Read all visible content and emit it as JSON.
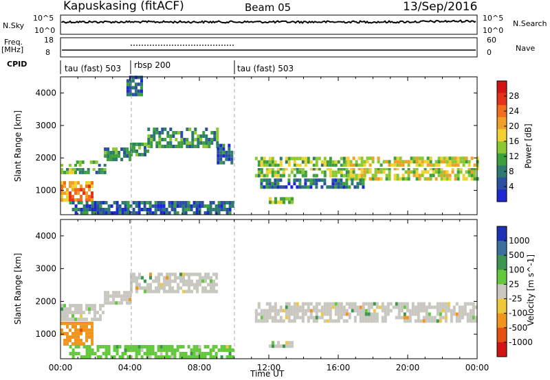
{
  "header": {
    "station": "Kapuskasing (fitACF)",
    "beam": "Beam 05",
    "date": "13/Sep/2016"
  },
  "top_strips": {
    "nsky_label": "N.Sky",
    "nsky_ticks": [
      "10^5",
      "10^0"
    ],
    "nsearch_label": "N.Search",
    "nsearch_ticks": [
      "10^5",
      "10^0"
    ],
    "freq_label": "Freq.",
    "freq_unit": "[MHz]",
    "freq_ticks": [
      "18",
      "8"
    ],
    "nave_label": "Nave",
    "nave_ticks": [
      "60",
      "0"
    ],
    "cpid_label": "CPID",
    "cpid_segments": [
      {
        "label": "tau (fast) 503",
        "start_h": 0,
        "end_h": 4
      },
      {
        "label": "rbsp 200",
        "start_h": 4,
        "end_h": 10
      },
      {
        "label": "tau (fast) 503",
        "start_h": 10,
        "end_h": 24
      }
    ]
  },
  "chart_data": [
    {
      "type": "heatmap",
      "name": "power",
      "ylabel": "Slant Range [km]",
      "yticks": [
        1000,
        2000,
        3000,
        4000
      ],
      "ylim": [
        250,
        4500
      ],
      "xlim": [
        0,
        24
      ],
      "colorbar_label": "Power [dB]",
      "colorbar_ticks": [
        "28",
        "24",
        "20",
        "16",
        "12",
        "8",
        "4"
      ],
      "colors": [
        "#1e28d2",
        "#2c50a0",
        "#2d7a6e",
        "#3ca03c",
        "#8cc832",
        "#f0d232",
        "#f0a028",
        "#f06e1e",
        "#e63218",
        "#d21414"
      ],
      "bands": [
        {
          "t0": 0.0,
          "t1": 0.9,
          "r0": 1500,
          "r1": 1800,
          "v": 13
        },
        {
          "t0": 0.9,
          "t1": 2.5,
          "r0": 1500,
          "r1": 1900,
          "v": 11
        },
        {
          "t0": 2.5,
          "t1": 4.0,
          "r0": 1900,
          "r1": 2300,
          "v": 9
        },
        {
          "t0": 0.0,
          "t1": 1.8,
          "r0": 650,
          "r1": 1250,
          "v": 22
        },
        {
          "t0": 4.0,
          "t1": 5.0,
          "r0": 2050,
          "r1": 2400,
          "v": 9
        },
        {
          "t0": 5.0,
          "t1": 9.0,
          "r0": 2300,
          "r1": 2850,
          "v": 10
        },
        {
          "t0": 9.0,
          "t1": 9.8,
          "r0": 1800,
          "r1": 2350,
          "v": 6
        },
        {
          "t0": 3.8,
          "t1": 4.6,
          "r0": 3900,
          "r1": 4450,
          "v": 6
        },
        {
          "t0": 11.2,
          "t1": 16.5,
          "r0": 1400,
          "r1": 1950,
          "v": 14
        },
        {
          "t0": 16.5,
          "t1": 24.0,
          "r0": 1300,
          "r1": 1950,
          "v": 16
        },
        {
          "t0": 11.5,
          "t1": 17.5,
          "r0": 1050,
          "r1": 1350,
          "v": 7
        },
        {
          "t0": 0.5,
          "t1": 10.0,
          "r0": 250,
          "r1": 600,
          "v": 6
        },
        {
          "t0": 12.0,
          "t1": 13.3,
          "r0": 580,
          "r1": 700,
          "v": 14
        }
      ]
    },
    {
      "type": "heatmap",
      "name": "velocity",
      "ylabel": "Slant Range [km]",
      "yticks": [
        1000,
        2000,
        3000,
        4000
      ],
      "ylim": [
        250,
        4500
      ],
      "xlim": [
        0,
        24
      ],
      "xticks": [
        "00:00",
        "04:00",
        "08:00",
        "12:00",
        "16:00",
        "20:00",
        "00:00"
      ],
      "xlabel": "Time UT",
      "colorbar_label": "Velocity [m s^-1]",
      "colorbar_ticks": [
        "1000",
        "500",
        "100",
        "25",
        "-25",
        "-100",
        "-500",
        "-1000"
      ],
      "colors": [
        "#1e32b4",
        "#3c6ea0",
        "#3c9650",
        "#64c83c",
        "#c8c8c0",
        "#f0c83c",
        "#f0961e",
        "#e65014",
        "#d21414"
      ],
      "bands": [
        {
          "t0": 0.0,
          "t1": 2.5,
          "r0": 1400,
          "r1": 1900,
          "v": 0
        },
        {
          "t0": 2.5,
          "t1": 4.0,
          "r0": 1900,
          "r1": 2300,
          "v": 0
        },
        {
          "t0": 0.0,
          "t1": 1.8,
          "r0": 650,
          "r1": 1300,
          "v": -400
        },
        {
          "t0": 4.0,
          "t1": 9.0,
          "r0": 2250,
          "r1": 2850,
          "v": 0
        },
        {
          "t0": 11.2,
          "t1": 24.0,
          "r0": 1350,
          "r1": 1950,
          "v": 0
        },
        {
          "t0": 12.0,
          "t1": 13.3,
          "r0": 580,
          "r1": 700,
          "v": 0
        },
        {
          "t0": 0.5,
          "t1": 10.0,
          "r0": 250,
          "r1": 600,
          "v": 60
        }
      ]
    }
  ],
  "colors": {
    "grid_dash": "#aaaaaa",
    "white_line": "#ffffff"
  }
}
